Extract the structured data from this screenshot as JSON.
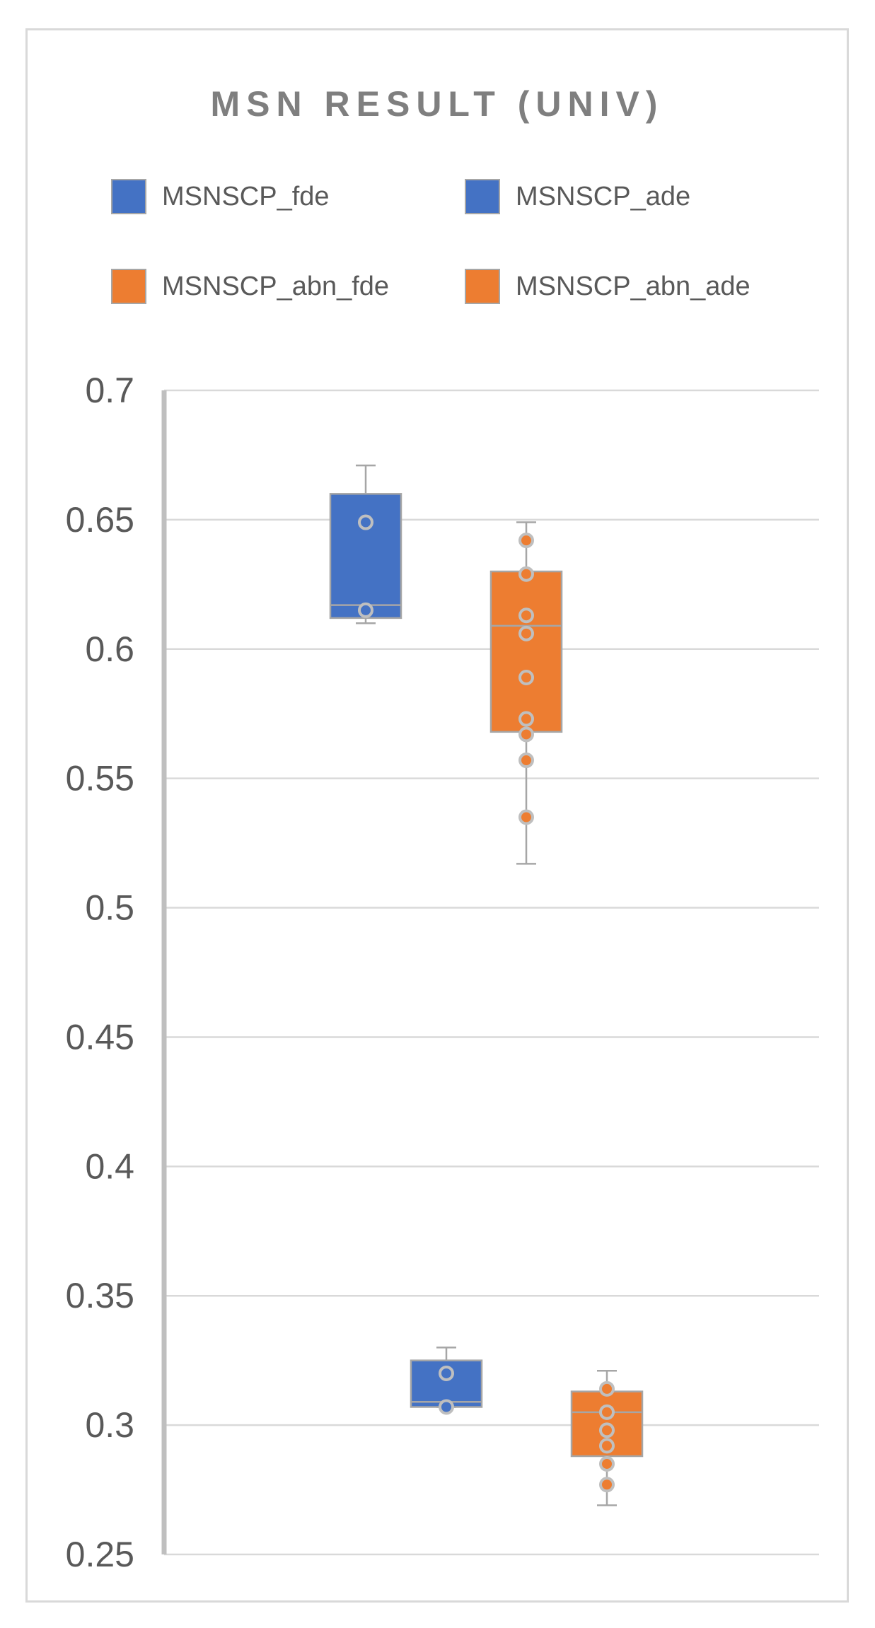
{
  "chart_data": {
    "type": "boxplot",
    "title": "MSN RESULT (UNIV)",
    "xlabel": "",
    "ylabel": "",
    "ylim": [
      0.25,
      0.7
    ],
    "ytick_step": 0.05,
    "y_tick_labels": [
      "0.7",
      "0.65",
      "0.6",
      "0.55",
      "0.5",
      "0.45",
      "0.4",
      "0.35",
      "0.3",
      "0.25"
    ],
    "grid": true,
    "legend_position": "top",
    "series": [
      {
        "name": "MSNSCP_fde",
        "color": "#4472c4",
        "whisker_low": 0.61,
        "q1": 0.612,
        "median": 0.617,
        "q3": 0.66,
        "whisker_high": 0.671,
        "points": [
          0.649,
          0.615
        ]
      },
      {
        "name": "MSNSCP_abn_fde",
        "color": "#ed7d31",
        "whisker_low": 0.517,
        "q1": 0.568,
        "median": 0.609,
        "q3": 0.63,
        "whisker_high": 0.649,
        "points": [
          0.642,
          0.629,
          0.613,
          0.606,
          0.589,
          0.573,
          0.567,
          0.557,
          0.535
        ]
      },
      {
        "name": "MSNSCP_ade",
        "color": "#4472c4",
        "whisker_low": 0.307,
        "q1": 0.307,
        "median": 0.309,
        "q3": 0.325,
        "whisker_high": 0.33,
        "points": [
          0.32,
          0.307
        ]
      },
      {
        "name": "MSNSCP_abn_ade",
        "color": "#ed7d31",
        "whisker_low": 0.269,
        "q1": 0.288,
        "median": 0.305,
        "q3": 0.313,
        "whisker_high": 0.321,
        "points": [
          0.314,
          0.305,
          0.298,
          0.292,
          0.285,
          0.277
        ]
      }
    ]
  }
}
